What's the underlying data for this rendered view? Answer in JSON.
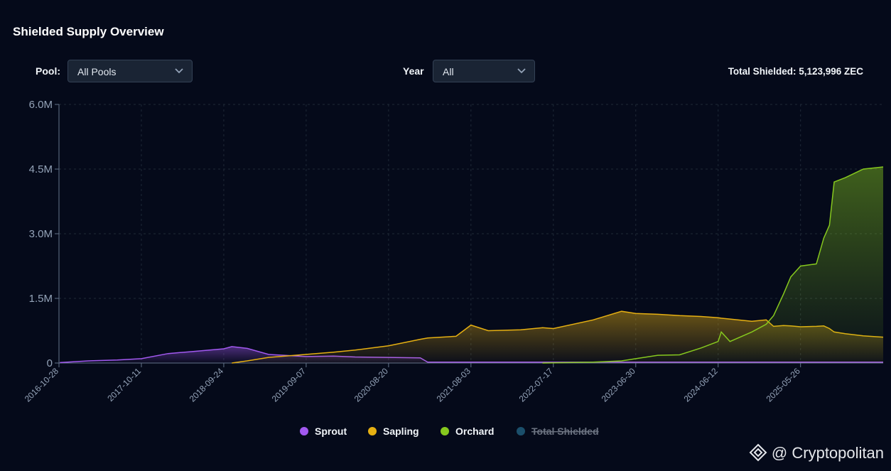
{
  "header": {
    "title": "Shielded Supply Overview"
  },
  "controls": {
    "pool": {
      "label": "Pool:",
      "value": "All Pools"
    },
    "year": {
      "label": "Year",
      "value": "All"
    },
    "total": "Total Shielded: 5,123,996 ZEC"
  },
  "watermark": "@ Cryptopolitan",
  "chart_data": {
    "type": "area",
    "x": [
      "2016-11-01",
      "2017-03-01",
      "2017-07-01",
      "2017-10-11",
      "2018-02-01",
      "2018-05-01",
      "2018-09-24",
      "2018-10-28",
      "2019-01-01",
      "2019-04-01",
      "2019-09-07",
      "2020-01-01",
      "2020-04-01",
      "2020-08-20",
      "2021-01-01",
      "2021-02-01",
      "2021-06-01",
      "2021-08-03",
      "2021-10-15",
      "2022-03-01",
      "2022-06-01",
      "2022-07-17",
      "2023-01-01",
      "2023-05-01",
      "2023-06-30",
      "2023-10-01",
      "2024-01-01",
      "2024-04-01",
      "2024-06-12",
      "2024-06-25",
      "2024-08-01",
      "2024-11-01",
      "2025-01-01",
      "2025-02-01",
      "2025-03-15",
      "2025-04-15",
      "2025-05-26",
      "2025-08-01",
      "2025-09-01",
      "2025-09-25",
      "2025-10-15",
      "2025-12-01",
      "2026-02-15",
      "2026-05-10"
    ],
    "xlim": [
      "2016-10-28",
      "2026-05-10"
    ],
    "xticks": [
      "2016-10-28",
      "2017-10-11",
      "2018-09-24",
      "2019-09-07",
      "2020-08-20",
      "2021-08-03",
      "2022-07-17",
      "2023-06-30",
      "2024-06-12",
      "2025-05-26"
    ],
    "ylim": [
      0,
      6000000
    ],
    "yticks": [
      0,
      {
        "value": 1500000,
        "label": "1.5M"
      },
      {
        "value": 3000000,
        "label": "3.0M"
      },
      {
        "value": 4500000,
        "label": "4.5M"
      },
      {
        "value": 6000000,
        "label": "6.0M"
      }
    ],
    "grid": true,
    "legend": "bottom",
    "series": [
      {
        "name": "Sprout",
        "color": "#a259f0",
        "values": [
          10000,
          50000,
          70000,
          100000,
          220000,
          260000,
          330000,
          380000,
          340000,
          200000,
          150000,
          160000,
          140000,
          130000,
          120000,
          20000,
          20000,
          20000,
          20000,
          20000,
          20000,
          20000,
          20000,
          20000,
          20000,
          20000,
          20000,
          20000,
          20000,
          20000,
          20000,
          20000,
          20000,
          20000,
          20000,
          20000,
          20000,
          20000,
          20000,
          20000,
          20000,
          20000,
          20000,
          20000
        ]
      },
      {
        "name": "Sapling",
        "color": "#e6b012",
        "values": [
          null,
          null,
          null,
          null,
          null,
          null,
          null,
          0,
          50000,
          130000,
          200000,
          250000,
          300000,
          400000,
          550000,
          580000,
          620000,
          880000,
          750000,
          770000,
          820000,
          800000,
          1000000,
          1200000,
          1150000,
          1130000,
          1100000,
          1080000,
          1050000,
          1040000,
          1020000,
          970000,
          1000000,
          850000,
          870000,
          860000,
          840000,
          850000,
          860000,
          800000,
          720000,
          680000,
          630000,
          600000
        ]
      },
      {
        "name": "Orchard",
        "color": "#86c81e",
        "values": [
          null,
          null,
          null,
          null,
          null,
          null,
          null,
          null,
          null,
          null,
          null,
          null,
          null,
          null,
          null,
          null,
          null,
          null,
          null,
          null,
          0,
          5000,
          20000,
          50000,
          100000,
          180000,
          190000,
          350000,
          500000,
          720000,
          500000,
          720000,
          900000,
          1100000,
          1600000,
          2000000,
          2250000,
          2300000,
          2900000,
          3200000,
          4200000,
          4300000,
          4500000,
          4550000
        ]
      },
      {
        "name": "Total Shielded",
        "color": "#1b4f6b",
        "hidden": true
      }
    ]
  }
}
